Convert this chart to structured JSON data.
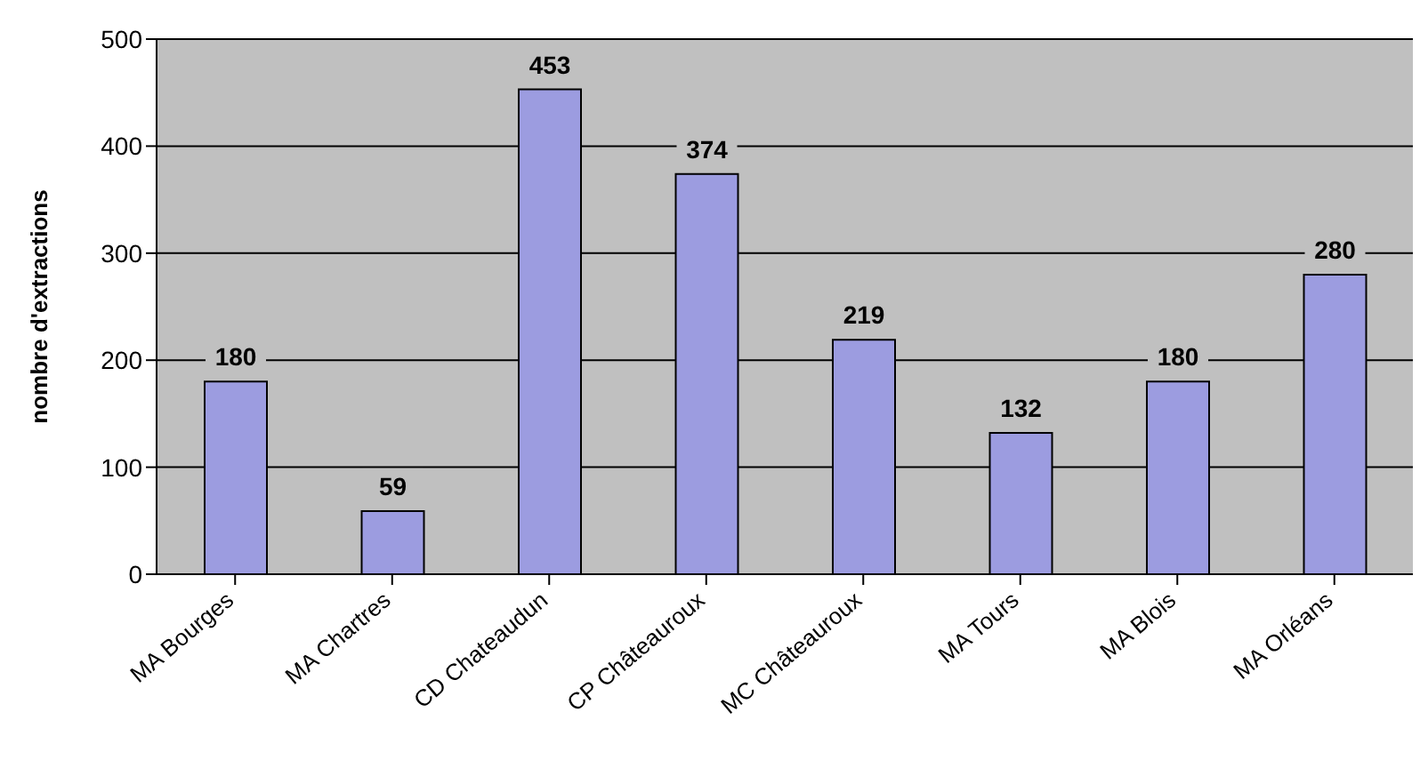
{
  "chart_data": {
    "type": "bar",
    "ylabel": "nombre d'extractions",
    "categories": [
      "MA Bourges",
      "MA Chartres",
      "CD Chateaudun",
      "CP Châteauroux",
      "MC Châteauroux",
      "MA Tours",
      "MA Blois",
      "MA Orléans"
    ],
    "values": [
      180,
      59,
      453,
      374,
      219,
      132,
      180,
      280
    ],
    "color": "#9c9ce0",
    "ylim": [
      0,
      500
    ],
    "yticks": [
      0,
      100,
      200,
      300,
      400,
      500
    ],
    "grid": "y",
    "data_labels": true
  }
}
